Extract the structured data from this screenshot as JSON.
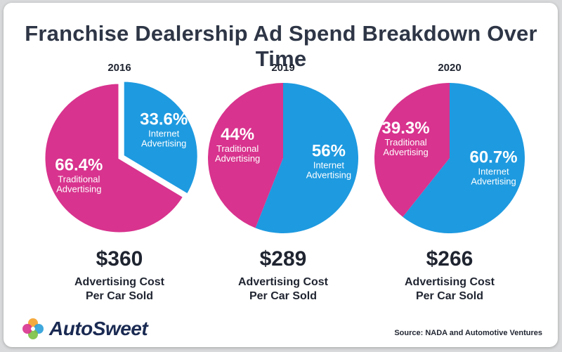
{
  "title": "Franchise Dealership Ad Spend Breakdown Over Time",
  "colors": {
    "internet": "#1e9ae0",
    "traditional": "#d8338e"
  },
  "chart_data": [
    {
      "type": "pie",
      "title": "2016",
      "slices": [
        {
          "value": 33.6,
          "pct_label": "33.6%",
          "label_lines": [
            "Internet",
            "Advertising"
          ]
        },
        {
          "value": 66.4,
          "pct_label": "66.4%",
          "label_lines": [
            "Traditional",
            "Advertising"
          ]
        }
      ],
      "exploded": true,
      "cost": "$360",
      "cost_label_lines": [
        "Advertising Cost",
        "Per Car Sold"
      ]
    },
    {
      "type": "pie",
      "title": "2019",
      "slices": [
        {
          "value": 56,
          "pct_label": "56%",
          "label_lines": [
            "Internet",
            "Advertising"
          ]
        },
        {
          "value": 44,
          "pct_label": "44%",
          "label_lines": [
            "Traditional",
            "Advertising"
          ]
        }
      ],
      "exploded": false,
      "cost": "$289",
      "cost_label_lines": [
        "Advertising Cost",
        "Per Car Sold"
      ]
    },
    {
      "type": "pie",
      "title": "2020",
      "slices": [
        {
          "value": 60.7,
          "pct_label": "60.7%",
          "label_lines": [
            "Internet",
            "Advertising"
          ]
        },
        {
          "value": 39.3,
          "pct_label": "39.3%",
          "label_lines": [
            "Traditional",
            "Advertising"
          ]
        }
      ],
      "exploded": false,
      "cost": "$266",
      "cost_label_lines": [
        "Advertising Cost",
        "Per Car Sold"
      ]
    }
  ],
  "logo": {
    "text": "AutoSweet",
    "icon": "autosweet-flower-logo"
  },
  "source": "Source: NADA and Automotive Ventures"
}
